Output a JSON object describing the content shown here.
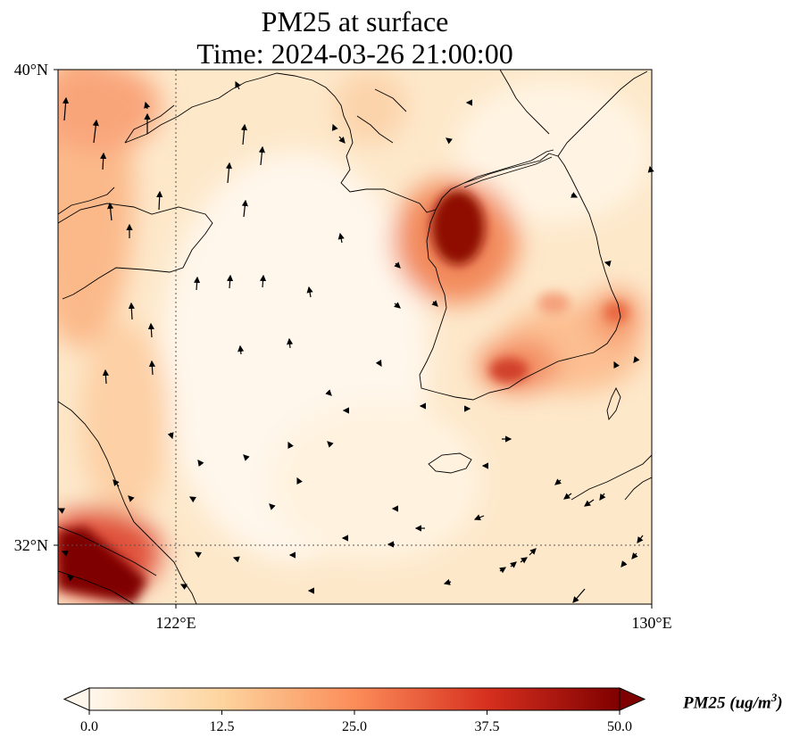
{
  "title": {
    "line1": "PM25 at surface",
    "line2": "Time: 2024-03-26 21:00:00"
  },
  "map": {
    "lat_labels": [
      "40°N",
      "32°N"
    ],
    "lon_labels": [
      "122°E",
      "130°E"
    ],
    "gridlines": "dotted",
    "features": [
      "coastline",
      "country borders",
      "wind vectors",
      "PM2.5 concentration field"
    ]
  },
  "colorbar": {
    "title": "PM25 (ug/m",
    "title_exponent": "3",
    "title_suffix": ")",
    "ticks": [
      "0.0",
      "12.5",
      "25.0",
      "37.5",
      "50.0"
    ],
    "min": 0,
    "max": 50,
    "colormap": "OrRd",
    "colors": [
      "#fff7ec",
      "#fdd49e",
      "#fc8d59",
      "#d7301f",
      "#7f0000"
    ]
  }
}
